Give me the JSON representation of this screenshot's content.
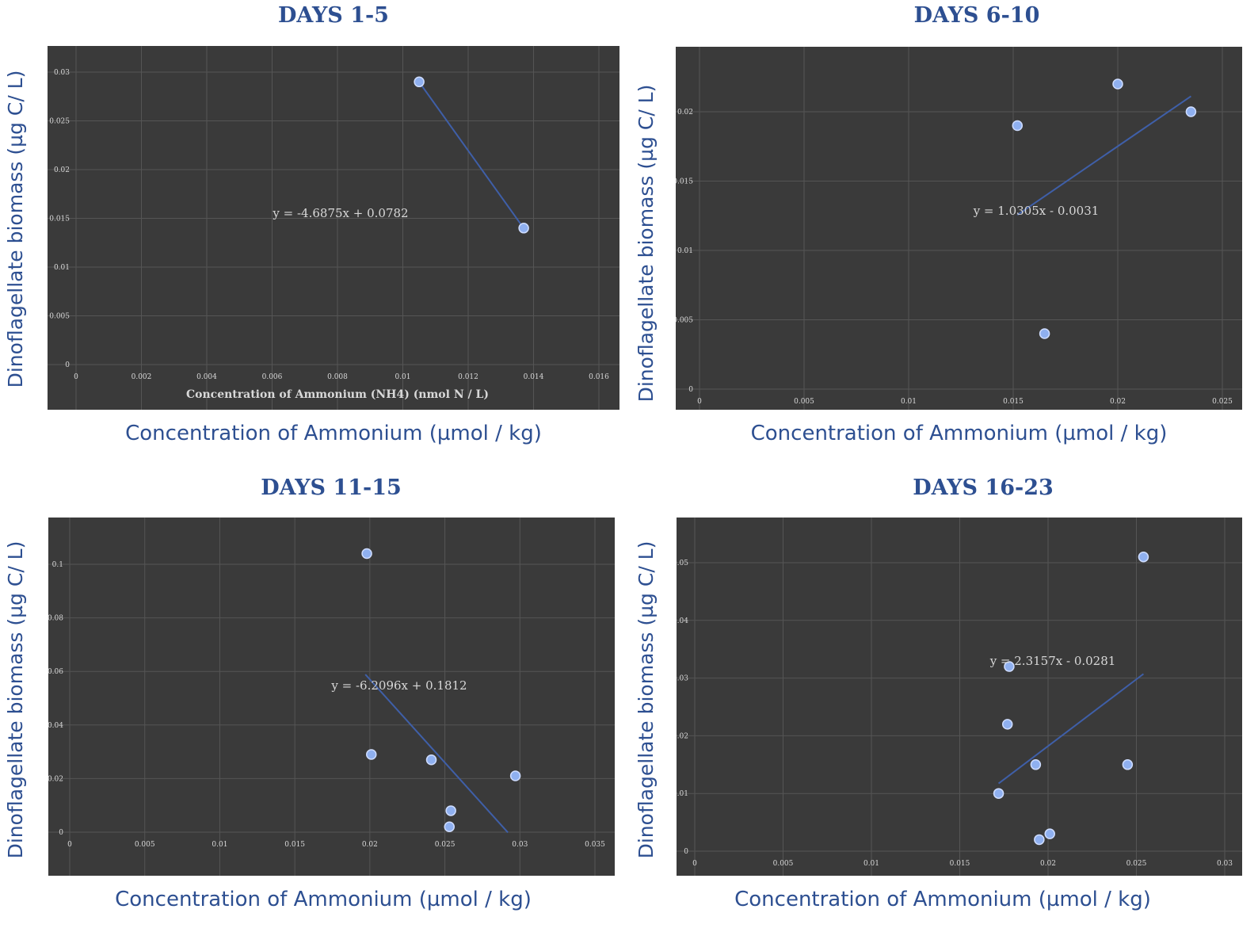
{
  "chart_data": [
    {
      "type": "scatter",
      "title": "DAYS 1-5",
      "xlabel": "Concentration of Ammonium (µmol / kg)",
      "ylabel": "Dinoflagellate biomass (µg C/ L)",
      "inner_xlabel": "Concentration of Ammonium (NH4) (nmol N / L)",
      "xlim": [
        0,
        0.016
      ],
      "ylim": [
        0,
        0.03
      ],
      "xticks": [
        0,
        0.002,
        0.004,
        0.006,
        0.008,
        0.01,
        0.012,
        0.014,
        0.016
      ],
      "xtick_labels": [
        "0",
        "0.002",
        "0.004",
        "0.006",
        "0.008",
        "0.01",
        "0.012",
        "0.014",
        "0.016"
      ],
      "yticks": [
        0,
        0.005,
        0.01,
        0.015,
        0.02,
        0.025,
        0.03
      ],
      "ytick_labels": [
        "0",
        "0.005",
        "0.01",
        "0.015",
        "0.02",
        "0.025",
        "0.03"
      ],
      "grid": true,
      "points": [
        [
          0.0105,
          0.029
        ],
        [
          0.0137,
          0.014
        ]
      ],
      "trendline": {
        "slope": -4.6875,
        "intercept": 0.0782,
        "x_range": [
          0.0105,
          0.0137
        ]
      },
      "equation": "y = -4.6875x + 0.0782"
    },
    {
      "type": "scatter",
      "title": "DAYS 6-10",
      "xlabel": "Concentration of Ammonium (µmol / kg)",
      "ylabel": "Dinoflagellate biomass (µg C/ L)",
      "inner_xlabel": "",
      "xlim": [
        0,
        0.025
      ],
      "ylim": [
        0,
        0.022
      ],
      "xticks": [
        0,
        0.005,
        0.01,
        0.015,
        0.02,
        0.025
      ],
      "xtick_labels": [
        "0",
        "0.005",
        "0.01",
        "0.015",
        "0.02",
        "0.025"
      ],
      "yticks": [
        0,
        0.005,
        0.01,
        0.015,
        0.02
      ],
      "ytick_labels": [
        "0",
        "0.005",
        "0.01",
        "0.015",
        "0.02"
      ],
      "grid": true,
      "points": [
        [
          0.0152,
          0.019
        ],
        [
          0.0165,
          0.004
        ],
        [
          0.02,
          0.022
        ],
        [
          0.0235,
          0.02
        ]
      ],
      "trendline": {
        "slope": 1.0305,
        "intercept": -0.0031,
        "x_range": [
          0.0152,
          0.0235
        ]
      },
      "equation": "y = 1.0305x - 0.0031"
    },
    {
      "type": "scatter",
      "title": "DAYS 11-15",
      "xlabel": "Concentration of Ammonium (µmol / kg)",
      "ylabel": "Dinoflagellate biomass (µg C/ L)",
      "inner_xlabel": "",
      "xlim": [
        0,
        0.035
      ],
      "ylim": [
        0,
        0.1
      ],
      "xticks": [
        0,
        0.005,
        0.01,
        0.015,
        0.02,
        0.025,
        0.03,
        0.035
      ],
      "xtick_labels": [
        "0",
        "0.005",
        "0.01",
        "0.015",
        "0.02",
        "0.025",
        "0.03",
        "0.035"
      ],
      "yticks": [
        0,
        0.02,
        0.04,
        0.06,
        0.08,
        0.1
      ],
      "ytick_labels": [
        "0",
        "0.02",
        "0.04",
        "0.06",
        "0.08",
        "0.1"
      ],
      "grid": true,
      "points": [
        [
          0.0198,
          0.104
        ],
        [
          0.0201,
          0.029
        ],
        [
          0.0241,
          0.027
        ],
        [
          0.0253,
          0.002
        ],
        [
          0.0254,
          0.008
        ],
        [
          0.0297,
          0.021
        ]
      ],
      "trendline": {
        "slope": -6.2096,
        "intercept": 0.1812,
        "x_range": [
          0.0197,
          0.0292
        ]
      },
      "equation": "y = -6.2096x + 0.1812"
    },
    {
      "type": "scatter",
      "title": "DAYS 16-23",
      "xlabel": "Concentration of Ammonium (µmol / kg)",
      "ylabel": "Dinoflagellate biomass (µg C/ L)",
      "inner_xlabel": "",
      "xlim": [
        0,
        0.03
      ],
      "ylim": [
        0,
        0.05
      ],
      "xticks": [
        0,
        0.005,
        0.01,
        0.015,
        0.02,
        0.025,
        0.03
      ],
      "xtick_labels": [
        "0",
        "0.005",
        "0.01",
        "0.015",
        "0.02",
        "0.025",
        "0.03"
      ],
      "yticks": [
        0,
        0.01,
        0.02,
        0.03,
        0.04,
        0.05
      ],
      "ytick_labels": [
        "0",
        "0.01",
        "0.02",
        "0.03",
        "0.04",
        "0.05"
      ],
      "grid": true,
      "points": [
        [
          0.0172,
          0.01
        ],
        [
          0.0177,
          0.022
        ],
        [
          0.0178,
          0.032
        ],
        [
          0.0193,
          0.015
        ],
        [
          0.0195,
          0.002
        ],
        [
          0.0201,
          0.003
        ],
        [
          0.0245,
          0.015
        ],
        [
          0.0254,
          0.051
        ]
      ],
      "trendline": {
        "slope": 2.3157,
        "intercept": -0.0281,
        "x_range": [
          0.0172,
          0.0254
        ]
      },
      "equation": "y = 2.3157x - 0.0281"
    }
  ],
  "colors": {
    "plot_background": "#3a3a3a",
    "gridline": "#555555",
    "point_fill": "#8fb0f0",
    "point_stroke": "#cfddff",
    "trendline": "#3f5fa8",
    "axis_text": "#d8d8d8",
    "caption_text": "#2d4f91"
  }
}
